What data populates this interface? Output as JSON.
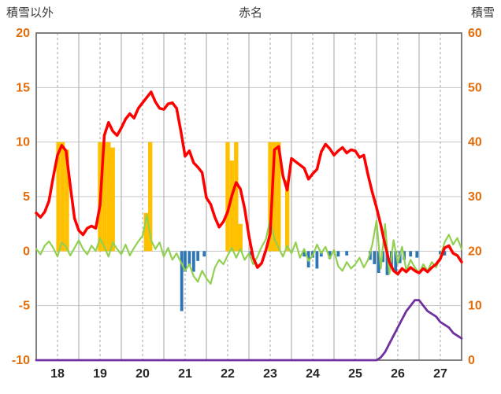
{
  "chart_data": {
    "type": "line",
    "title": "赤名",
    "left_axis": {
      "title": "積雪以外",
      "min": -10,
      "max": 20,
      "ticks": [
        20,
        15,
        10,
        5,
        0,
        -5,
        -10
      ],
      "label_color": "#E36C0A"
    },
    "right_axis": {
      "title": "積雪",
      "min": 0,
      "max": 60,
      "ticks": [
        60,
        50,
        40,
        30,
        20,
        10,
        0
      ],
      "label_color": "#E36C0A"
    },
    "x_axis": {
      "min": 17.5,
      "max": 27.5,
      "labels": [
        18,
        19,
        20,
        21,
        22,
        23,
        24,
        25,
        26,
        27
      ],
      "label_color": "#262626"
    },
    "grid": {
      "h_color": "#C6C6C6",
      "v_color": "#A6A6A6",
      "border_color": "#7F7F7F"
    },
    "series": [
      {
        "id": "orange-bar-series",
        "type": "bar",
        "axis": "left",
        "color": "#FFC000",
        "bar_width": 0.1,
        "points": [
          [
            18.02,
            10
          ],
          [
            18.12,
            10
          ],
          [
            18.22,
            9.3
          ],
          [
            19.0,
            10
          ],
          [
            19.1,
            10
          ],
          [
            19.2,
            10
          ],
          [
            19.3,
            9.5
          ],
          [
            20.08,
            3.5
          ],
          [
            20.18,
            10
          ],
          [
            22.0,
            10
          ],
          [
            22.1,
            8.3
          ],
          [
            22.2,
            10
          ],
          [
            22.3,
            2.5
          ],
          [
            23.0,
            10
          ],
          [
            23.1,
            10
          ],
          [
            23.2,
            10
          ],
          [
            23.4,
            6.5
          ]
        ]
      },
      {
        "id": "blue-bar-series",
        "type": "bar",
        "axis": "left",
        "color": "#2E75B6",
        "bar_width": 0.07,
        "points": [
          [
            20.92,
            -5.5
          ],
          [
            21.0,
            -1.9
          ],
          [
            21.1,
            -1.3
          ],
          [
            21.2,
            -1.9
          ],
          [
            21.3,
            -0.9
          ],
          [
            21.45,
            -0.5
          ],
          [
            22.55,
            -0.4
          ],
          [
            23.8,
            -0.5
          ],
          [
            23.9,
            -1.5
          ],
          [
            24.0,
            -0.6
          ],
          [
            24.1,
            -1.6
          ],
          [
            24.2,
            -0.5
          ],
          [
            24.4,
            -0.7
          ],
          [
            24.6,
            -0.5
          ],
          [
            24.8,
            -0.4
          ],
          [
            25.35,
            -0.8
          ],
          [
            25.45,
            -1.2
          ],
          [
            25.55,
            -2.0
          ],
          [
            25.65,
            -1.0
          ],
          [
            25.75,
            -2.2
          ],
          [
            25.85,
            -1.5
          ],
          [
            25.95,
            -2.0
          ],
          [
            26.05,
            -1.1
          ],
          [
            26.15,
            -0.8
          ],
          [
            26.3,
            -0.5
          ],
          [
            26.45,
            -0.6
          ],
          [
            27.0,
            -0.3
          ],
          [
            27.1,
            -0.4
          ]
        ]
      },
      {
        "id": "green-line-series",
        "type": "line",
        "axis": "left",
        "color": "#92D050",
        "stroke_width": 2.2,
        "x_start": 17.5,
        "x_step": 0.1,
        "values": [
          0.2,
          -0.3,
          0.5,
          0.9,
          0.3,
          -0.5,
          0.8,
          0.4,
          -0.4,
          0.3,
          1.0,
          0.2,
          -0.3,
          0.5,
          0.0,
          1.2,
          0.4,
          -0.5,
          0.8,
          0.2,
          -0.3,
          0.6,
          -0.4,
          0.3,
          0.9,
          1.4,
          3.3,
          1.0,
          0.2,
          0.8,
          -0.5,
          0.3,
          -0.8,
          -0.2,
          -1.0,
          -1.8,
          -1.2,
          -2.3,
          -2.8,
          -1.8,
          -2.5,
          -3.0,
          -1.5,
          -0.8,
          -1.2,
          -0.4,
          0.3,
          -0.6,
          0.2,
          -0.8,
          -0.2,
          -1.2,
          -0.5,
          0.4,
          1.1,
          2.9,
          1.1,
          0.3,
          -0.5,
          0.5,
          -0.2,
          0.8,
          -0.6,
          0.2,
          -0.9,
          -0.4,
          0.6,
          -0.2,
          0.4,
          -0.7,
          0.1,
          -1.4,
          -1.8,
          -1.0,
          -1.6,
          -1.2,
          -0.6,
          -1.5,
          -0.8,
          0.6,
          2.8,
          -1.6,
          2.5,
          -2.1,
          1.0,
          -1.1,
          0.4,
          -1.8,
          -0.8,
          -1.5,
          -2.0,
          -1.2,
          -1.8,
          -1.0,
          -1.5,
          -0.5,
          0.8,
          1.5,
          0.6,
          1.2,
          0.2
        ]
      },
      {
        "id": "red-temperature-line",
        "type": "line",
        "axis": "left",
        "color": "#FF0000",
        "stroke_width": 3.5,
        "x_start": 17.5,
        "x_step": 0.1,
        "values": [
          3.5,
          3.1,
          3.6,
          4.6,
          6.8,
          8.8,
          9.7,
          9.2,
          6.0,
          3.0,
          1.9,
          1.5,
          2.1,
          2.3,
          2.1,
          4.2,
          10.6,
          11.8,
          11.0,
          10.6,
          11.3,
          12.1,
          12.6,
          12.2,
          13.1,
          13.6,
          14.1,
          14.6,
          13.7,
          13.1,
          13.0,
          13.5,
          13.6,
          13.1,
          11.0,
          8.7,
          9.2,
          8.1,
          7.7,
          7.2,
          4.9,
          4.3,
          3.1,
          2.2,
          2.7,
          3.6,
          5.1,
          6.3,
          5.7,
          3.9,
          1.4,
          -0.6,
          -1.5,
          -1.1,
          0.1,
          1.6,
          9.3,
          9.6,
          6.9,
          5.6,
          8.5,
          8.2,
          7.9,
          7.6,
          6.6,
          7.1,
          7.5,
          9.1,
          9.8,
          9.4,
          8.8,
          9.2,
          9.5,
          9.0,
          9.3,
          9.2,
          8.6,
          8.8,
          7.0,
          5.4,
          4.0,
          2.4,
          0.6,
          -1.0,
          -1.8,
          -2.1,
          -1.6,
          -1.9,
          -1.5,
          -1.8,
          -2.0,
          -1.6,
          -1.9,
          -1.5,
          -1.2,
          -0.7,
          0.3,
          0.5,
          -0.2,
          -0.4,
          -1.0
        ]
      },
      {
        "id": "purple-snow-depth-line",
        "type": "line",
        "axis": "right",
        "color": "#7030A0",
        "stroke_width": 2.8,
        "points": [
          [
            17.5,
            0
          ],
          [
            25.5,
            0
          ],
          [
            25.6,
            0.5
          ],
          [
            25.7,
            1.5
          ],
          [
            25.8,
            3
          ],
          [
            25.9,
            4.5
          ],
          [
            26.0,
            6
          ],
          [
            26.1,
            7.5
          ],
          [
            26.2,
            9
          ],
          [
            26.3,
            10
          ],
          [
            26.4,
            11
          ],
          [
            26.5,
            11
          ],
          [
            26.6,
            10
          ],
          [
            26.7,
            9
          ],
          [
            26.8,
            8.5
          ],
          [
            26.9,
            8
          ],
          [
            27.0,
            7
          ],
          [
            27.1,
            6.5
          ],
          [
            27.2,
            6
          ],
          [
            27.3,
            5
          ],
          [
            27.4,
            4.5
          ],
          [
            27.5,
            4
          ]
        ]
      }
    ]
  }
}
